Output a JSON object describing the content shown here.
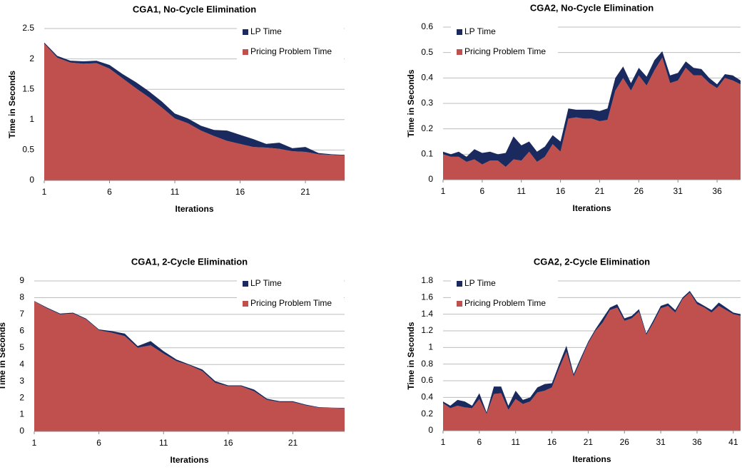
{
  "chart_data": [
    {
      "type": "stacked-area",
      "title": "CGA1, No-Cycle Elimination",
      "x_label": "Iterations",
      "y_label": "Time in Seconds",
      "x": [
        1,
        2,
        3,
        4,
        5,
        6,
        7,
        8,
        9,
        10,
        11,
        12,
        13,
        14,
        15,
        16,
        17,
        18,
        19,
        20,
        21,
        22,
        23,
        24
      ],
      "xlim": [
        1,
        24
      ],
      "xticks": [
        1,
        6,
        11,
        16,
        21
      ],
      "ylim": [
        0,
        2.5
      ],
      "yticks": [
        0,
        0.5,
        1,
        1.5,
        2,
        2.5
      ],
      "grid": true,
      "series": [
        {
          "name": "Pricing Problem Time",
          "color": "#c0504d",
          "values": [
            2.25,
            2.02,
            1.94,
            1.92,
            1.93,
            1.84,
            1.68,
            1.52,
            1.37,
            1.2,
            1.02,
            0.94,
            0.82,
            0.73,
            0.65,
            0.6,
            0.55,
            0.54,
            0.52,
            0.48,
            0.47,
            0.43,
            0.42,
            0.41
          ]
        },
        {
          "name": "LP Time",
          "color": "#1b2a5e",
          "values": [
            0.02,
            0.03,
            0.03,
            0.04,
            0.04,
            0.06,
            0.07,
            0.1,
            0.1,
            0.1,
            0.08,
            0.08,
            0.08,
            0.1,
            0.17,
            0.15,
            0.13,
            0.06,
            0.1,
            0.05,
            0.08,
            0.02,
            0.01,
            0.01
          ]
        }
      ]
    },
    {
      "type": "stacked-area",
      "title": "CGA2, No-Cycle Elimination",
      "x_label": "Iterations",
      "y_label": "Time in Seconds",
      "x": [
        1,
        2,
        3,
        4,
        5,
        6,
        7,
        8,
        9,
        10,
        11,
        12,
        13,
        14,
        15,
        16,
        17,
        18,
        19,
        20,
        21,
        22,
        23,
        24,
        25,
        26,
        27,
        28,
        29,
        30,
        31,
        32,
        33,
        34,
        35,
        36,
        37,
        38,
        39
      ],
      "xlim": [
        1,
        39
      ],
      "xticks": [
        1,
        6,
        11,
        16,
        21,
        26,
        31,
        36
      ],
      "ylim": [
        0,
        0.6
      ],
      "yticks": [
        0,
        0.1,
        0.2,
        0.3,
        0.4,
        0.5,
        0.6
      ],
      "grid": true,
      "series": [
        {
          "name": "Pricing Problem Time",
          "color": "#c0504d",
          "values": [
            0.1,
            0.09,
            0.09,
            0.07,
            0.08,
            0.06,
            0.075,
            0.075,
            0.05,
            0.08,
            0.075,
            0.11,
            0.07,
            0.09,
            0.14,
            0.11,
            0.24,
            0.245,
            0.24,
            0.24,
            0.23,
            0.235,
            0.35,
            0.4,
            0.35,
            0.41,
            0.37,
            0.43,
            0.48,
            0.38,
            0.39,
            0.44,
            0.41,
            0.41,
            0.38,
            0.36,
            0.4,
            0.39,
            0.375
          ]
        },
        {
          "name": "LP Time",
          "color": "#1b2a5e",
          "values": [
            0.01,
            0.01,
            0.02,
            0.02,
            0.04,
            0.045,
            0.035,
            0.025,
            0.055,
            0.09,
            0.06,
            0.04,
            0.04,
            0.04,
            0.035,
            0.04,
            0.04,
            0.03,
            0.035,
            0.035,
            0.04,
            0.045,
            0.05,
            0.045,
            0.03,
            0.03,
            0.035,
            0.04,
            0.025,
            0.03,
            0.03,
            0.025,
            0.03,
            0.025,
            0.02,
            0.015,
            0.015,
            0.02,
            0.015
          ]
        }
      ]
    },
    {
      "type": "stacked-area",
      "title": "CGA1, 2-Cycle Elimination",
      "x_label": "Iterations",
      "y_label": "Time in Seconds",
      "x": [
        1,
        2,
        3,
        4,
        5,
        6,
        7,
        8,
        9,
        10,
        11,
        12,
        13,
        14,
        15,
        16,
        17,
        18,
        19,
        20,
        21,
        22,
        23,
        24,
        25
      ],
      "xlim": [
        1,
        25
      ],
      "xticks": [
        1,
        6,
        11,
        16,
        21
      ],
      "ylim": [
        0,
        9
      ],
      "yticks": [
        0,
        1,
        2,
        3,
        4,
        5,
        6,
        7,
        8,
        9
      ],
      "grid": true,
      "series": [
        {
          "name": "Pricing Problem Time",
          "color": "#c0504d",
          "values": [
            7.78,
            7.35,
            7.0,
            7.05,
            6.7,
            6.05,
            5.9,
            5.7,
            5.0,
            5.15,
            4.65,
            4.2,
            3.95,
            3.6,
            2.9,
            2.7,
            2.7,
            2.4,
            1.88,
            1.75,
            1.75,
            1.55,
            1.42,
            1.4,
            1.38
          ]
        },
        {
          "name": "LP Time",
          "color": "#1b2a5e",
          "values": [
            0.02,
            0.05,
            0.05,
            0.05,
            0.05,
            0.05,
            0.1,
            0.15,
            0.1,
            0.25,
            0.15,
            0.1,
            0.05,
            0.1,
            0.1,
            0.05,
            0.05,
            0.1,
            0.07,
            0.05,
            0.05,
            0.05,
            0.03,
            0.02,
            0.02
          ]
        }
      ]
    },
    {
      "type": "stacked-area",
      "title": "CGA2, 2-Cycle Elimination",
      "x_label": "Iterations",
      "y_label": "Time in Seconds",
      "x": [
        1,
        2,
        3,
        4,
        5,
        6,
        7,
        8,
        9,
        10,
        11,
        12,
        13,
        14,
        15,
        16,
        17,
        18,
        19,
        20,
        21,
        22,
        23,
        24,
        25,
        26,
        27,
        28,
        29,
        30,
        31,
        32,
        33,
        34,
        35,
        36,
        37,
        38,
        39,
        40,
        41,
        42
      ],
      "xlim": [
        1,
        42
      ],
      "xticks": [
        1,
        6,
        11,
        16,
        21,
        26,
        31,
        36,
        41
      ],
      "ylim": [
        0,
        1.8
      ],
      "yticks": [
        0,
        0.2,
        0.4,
        0.6,
        0.8,
        1,
        1.2,
        1.4,
        1.6,
        1.8
      ],
      "grid": true,
      "series": [
        {
          "name": "Pricing Problem Time",
          "color": "#c0504d",
          "values": [
            0.33,
            0.27,
            0.3,
            0.28,
            0.27,
            0.38,
            0.2,
            0.44,
            0.45,
            0.25,
            0.38,
            0.32,
            0.35,
            0.46,
            0.48,
            0.52,
            0.75,
            0.95,
            0.65,
            0.85,
            1.05,
            1.2,
            1.3,
            1.45,
            1.48,
            1.32,
            1.35,
            1.43,
            1.15,
            1.3,
            1.47,
            1.5,
            1.42,
            1.58,
            1.66,
            1.52,
            1.48,
            1.42,
            1.5,
            1.45,
            1.4,
            1.38
          ]
        },
        {
          "name": "LP Time",
          "color": "#1b2a5e",
          "values": [
            0.02,
            0.03,
            0.07,
            0.07,
            0.03,
            0.07,
            0.02,
            0.09,
            0.08,
            0.05,
            0.1,
            0.05,
            0.05,
            0.06,
            0.08,
            0.05,
            0.05,
            0.07,
            0.03,
            0.03,
            0.02,
            0.02,
            0.05,
            0.03,
            0.04,
            0.03,
            0.03,
            0.03,
            0.02,
            0.03,
            0.03,
            0.03,
            0.03,
            0.02,
            0.02,
            0.03,
            0.02,
            0.03,
            0.04,
            0.03,
            0.02,
            0.02
          ]
        }
      ]
    }
  ]
}
